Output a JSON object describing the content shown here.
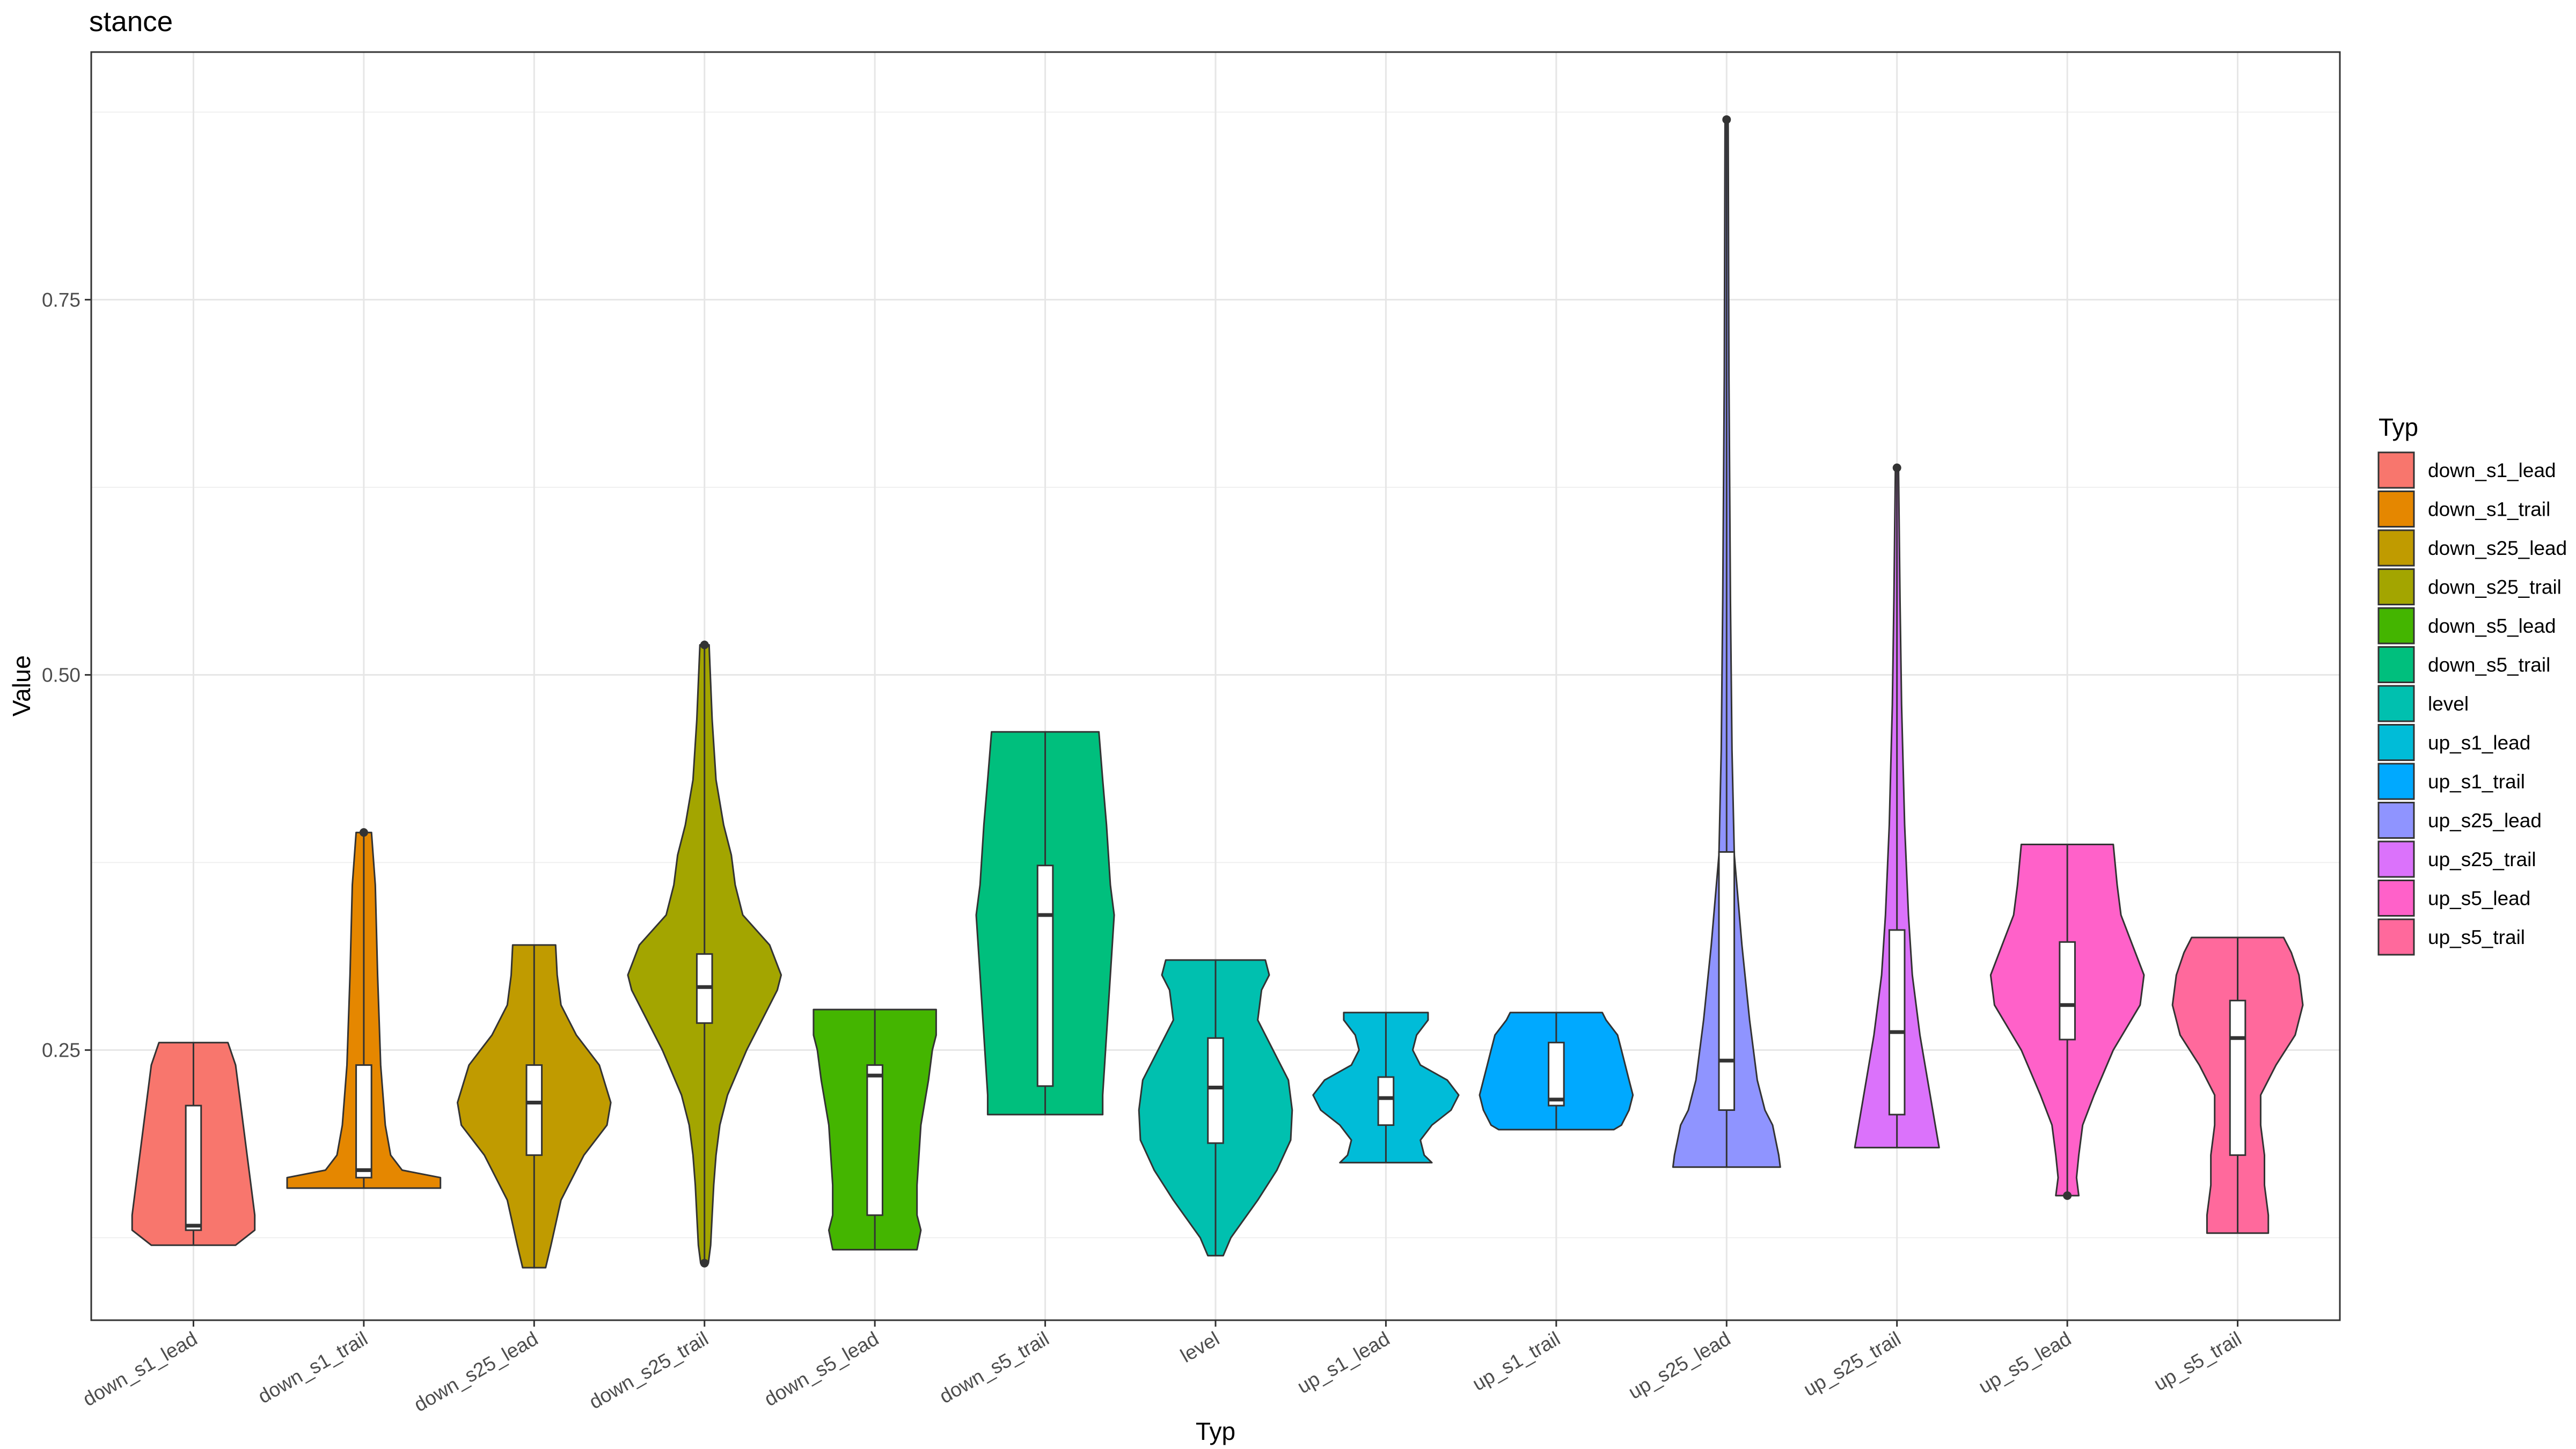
{
  "chart_data": {
    "type": "violin",
    "title": "stance",
    "xlabel": "Typ",
    "ylabel": "Value",
    "ylim": [
      0.07,
      0.915
    ],
    "yticks": [
      0.25,
      0.5,
      0.75
    ],
    "ytick_labels": [
      "0.25",
      "0.50",
      "0.75"
    ],
    "y_minor_gridlines": [
      0.125,
      0.375,
      0.625,
      0.875
    ],
    "grid": true,
    "legend": {
      "title": "Typ",
      "position": "right"
    },
    "categories": [
      "down_s1_lead",
      "down_s1_trail",
      "down_s25_lead",
      "down_s25_trail",
      "down_s5_lead",
      "down_s5_trail",
      "level",
      "up_s1_lead",
      "up_s1_trail",
      "up_s25_lead",
      "up_s25_trail",
      "up_s5_lead",
      "up_s5_trail"
    ],
    "series": [
      {
        "name": "down_s1_lead",
        "color": "#F8766D",
        "min": 0.12,
        "max": 0.255,
        "q1": 0.13,
        "median": 0.133,
        "q3": 0.213,
        "outliers": [],
        "density": [
          [
            0.12,
            0.55
          ],
          [
            0.13,
            0.8
          ],
          [
            0.14,
            0.8
          ],
          [
            0.16,
            0.75
          ],
          [
            0.18,
            0.7
          ],
          [
            0.2,
            0.65
          ],
          [
            0.22,
            0.6
          ],
          [
            0.24,
            0.55
          ],
          [
            0.255,
            0.45
          ]
        ]
      },
      {
        "name": "down_s1_trail",
        "color": "#E58700",
        "min": 0.158,
        "max": 0.395,
        "q1": 0.165,
        "median": 0.17,
        "q3": 0.24,
        "outliers": [
          0.395
        ],
        "density": [
          [
            0.158,
            1.0
          ],
          [
            0.165,
            1.0
          ],
          [
            0.17,
            0.5
          ],
          [
            0.18,
            0.35
          ],
          [
            0.2,
            0.28
          ],
          [
            0.24,
            0.22
          ],
          [
            0.3,
            0.18
          ],
          [
            0.36,
            0.15
          ],
          [
            0.395,
            0.1
          ]
        ]
      },
      {
        "name": "down_s25_lead",
        "color": "#C09B00",
        "min": 0.105,
        "max": 0.32,
        "q1": 0.18,
        "median": 0.215,
        "q3": 0.24,
        "outliers": [],
        "density": [
          [
            0.105,
            0.15
          ],
          [
            0.12,
            0.22
          ],
          [
            0.15,
            0.35
          ],
          [
            0.18,
            0.65
          ],
          [
            0.2,
            0.95
          ],
          [
            0.215,
            1.0
          ],
          [
            0.24,
            0.85
          ],
          [
            0.26,
            0.55
          ],
          [
            0.28,
            0.35
          ],
          [
            0.3,
            0.3
          ],
          [
            0.32,
            0.28
          ]
        ]
      },
      {
        "name": "down_s25_trail",
        "color": "#A3A500",
        "min": 0.108,
        "max": 0.52,
        "q1": 0.268,
        "median": 0.292,
        "q3": 0.314,
        "outliers": [
          0.108,
          0.52
        ],
        "density": [
          [
            0.108,
            0.05
          ],
          [
            0.12,
            0.08
          ],
          [
            0.14,
            0.1
          ],
          [
            0.16,
            0.12
          ],
          [
            0.18,
            0.15
          ],
          [
            0.2,
            0.2
          ],
          [
            0.22,
            0.3
          ],
          [
            0.25,
            0.55
          ],
          [
            0.27,
            0.75
          ],
          [
            0.29,
            0.95
          ],
          [
            0.3,
            1.0
          ],
          [
            0.32,
            0.85
          ],
          [
            0.34,
            0.5
          ],
          [
            0.36,
            0.4
          ],
          [
            0.38,
            0.35
          ],
          [
            0.4,
            0.25
          ],
          [
            0.43,
            0.15
          ],
          [
            0.47,
            0.1
          ],
          [
            0.52,
            0.06
          ]
        ]
      },
      {
        "name": "down_s5_lead",
        "color": "#44B500",
        "min": 0.117,
        "max": 0.277,
        "q1": 0.14,
        "median": 0.233,
        "q3": 0.24,
        "outliers": [],
        "density": [
          [
            0.117,
            0.55
          ],
          [
            0.13,
            0.6
          ],
          [
            0.14,
            0.55
          ],
          [
            0.16,
            0.55
          ],
          [
            0.2,
            0.6
          ],
          [
            0.23,
            0.7
          ],
          [
            0.25,
            0.75
          ],
          [
            0.26,
            0.8
          ],
          [
            0.277,
            0.8
          ]
        ]
      },
      {
        "name": "down_s5_trail",
        "color": "#00BF7D",
        "min": 0.207,
        "max": 0.462,
        "q1": 0.226,
        "median": 0.34,
        "q3": 0.373,
        "outliers": [],
        "density": [
          [
            0.207,
            0.75
          ],
          [
            0.22,
            0.75
          ],
          [
            0.26,
            0.8
          ],
          [
            0.3,
            0.85
          ],
          [
            0.34,
            0.9
          ],
          [
            0.36,
            0.85
          ],
          [
            0.4,
            0.8
          ],
          [
            0.43,
            0.75
          ],
          [
            0.462,
            0.7
          ]
        ]
      },
      {
        "name": "level",
        "color": "#00C0AF",
        "min": 0.113,
        "max": 0.31,
        "q1": 0.188,
        "median": 0.225,
        "q3": 0.258,
        "outliers": [],
        "density": [
          [
            0.113,
            0.1
          ],
          [
            0.125,
            0.2
          ],
          [
            0.15,
            0.55
          ],
          [
            0.17,
            0.8
          ],
          [
            0.19,
            0.98
          ],
          [
            0.21,
            1.0
          ],
          [
            0.23,
            0.95
          ],
          [
            0.25,
            0.75
          ],
          [
            0.27,
            0.55
          ],
          [
            0.29,
            0.6
          ],
          [
            0.3,
            0.7
          ],
          [
            0.31,
            0.65
          ]
        ]
      },
      {
        "name": "up_s1_lead",
        "color": "#00BCD8",
        "min": 0.175,
        "max": 0.275,
        "q1": 0.2,
        "median": 0.218,
        "q3": 0.232,
        "outliers": [],
        "density": [
          [
            0.175,
            0.6
          ],
          [
            0.18,
            0.5
          ],
          [
            0.19,
            0.45
          ],
          [
            0.2,
            0.6
          ],
          [
            0.21,
            0.85
          ],
          [
            0.22,
            0.95
          ],
          [
            0.23,
            0.8
          ],
          [
            0.24,
            0.45
          ],
          [
            0.25,
            0.35
          ],
          [
            0.26,
            0.4
          ],
          [
            0.27,
            0.55
          ],
          [
            0.275,
            0.55
          ]
        ]
      },
      {
        "name": "up_s1_trail",
        "color": "#00A9FF",
        "min": 0.197,
        "max": 0.275,
        "q1": 0.213,
        "median": 0.217,
        "q3": 0.255,
        "outliers": [],
        "density": [
          [
            0.197,
            0.75
          ],
          [
            0.2,
            0.85
          ],
          [
            0.21,
            0.95
          ],
          [
            0.22,
            1.0
          ],
          [
            0.23,
            0.95
          ],
          [
            0.24,
            0.9
          ],
          [
            0.25,
            0.85
          ],
          [
            0.26,
            0.8
          ],
          [
            0.27,
            0.65
          ],
          [
            0.275,
            0.6
          ]
        ]
      },
      {
        "name": "up_s25_lead",
        "color": "#8F94FF",
        "min": 0.172,
        "max": 0.87,
        "q1": 0.21,
        "median": 0.243,
        "q3": 0.382,
        "outliers": [
          0.87
        ],
        "density": [
          [
            0.172,
            0.7
          ],
          [
            0.18,
            0.68
          ],
          [
            0.2,
            0.6
          ],
          [
            0.21,
            0.5
          ],
          [
            0.23,
            0.4
          ],
          [
            0.27,
            0.3
          ],
          [
            0.32,
            0.2
          ],
          [
            0.38,
            0.1
          ],
          [
            0.45,
            0.07
          ],
          [
            0.55,
            0.05
          ],
          [
            0.7,
            0.03
          ],
          [
            0.87,
            0.02
          ]
        ]
      },
      {
        "name": "up_s25_trail",
        "color": "#DB72FB",
        "min": 0.185,
        "max": 0.638,
        "q1": 0.207,
        "median": 0.262,
        "q3": 0.33,
        "outliers": [
          0.638
        ],
        "density": [
          [
            0.185,
            0.55
          ],
          [
            0.2,
            0.5
          ],
          [
            0.23,
            0.4
          ],
          [
            0.26,
            0.3
          ],
          [
            0.3,
            0.2
          ],
          [
            0.34,
            0.15
          ],
          [
            0.4,
            0.1
          ],
          [
            0.48,
            0.06
          ],
          [
            0.55,
            0.04
          ],
          [
            0.638,
            0.02
          ]
        ]
      },
      {
        "name": "up_s5_lead",
        "color": "#FF61C9",
        "min": 0.153,
        "max": 0.387,
        "q1": 0.257,
        "median": 0.28,
        "q3": 0.322,
        "outliers": [
          0.153
        ],
        "density": [
          [
            0.153,
            0.15
          ],
          [
            0.165,
            0.12
          ],
          [
            0.18,
            0.15
          ],
          [
            0.2,
            0.2
          ],
          [
            0.22,
            0.35
          ],
          [
            0.25,
            0.6
          ],
          [
            0.28,
            0.95
          ],
          [
            0.3,
            1.0
          ],
          [
            0.32,
            0.85
          ],
          [
            0.34,
            0.7
          ],
          [
            0.36,
            0.65
          ],
          [
            0.387,
            0.6
          ]
        ]
      },
      {
        "name": "up_s5_trail",
        "color": "#FF699C",
        "min": 0.128,
        "max": 0.325,
        "q1": 0.18,
        "median": 0.258,
        "q3": 0.283,
        "outliers": [],
        "density": [
          [
            0.128,
            0.4
          ],
          [
            0.14,
            0.4
          ],
          [
            0.16,
            0.35
          ],
          [
            0.18,
            0.35
          ],
          [
            0.2,
            0.3
          ],
          [
            0.22,
            0.3
          ],
          [
            0.24,
            0.5
          ],
          [
            0.26,
            0.75
          ],
          [
            0.28,
            0.85
          ],
          [
            0.3,
            0.8
          ],
          [
            0.315,
            0.7
          ],
          [
            0.325,
            0.6
          ]
        ]
      }
    ]
  }
}
